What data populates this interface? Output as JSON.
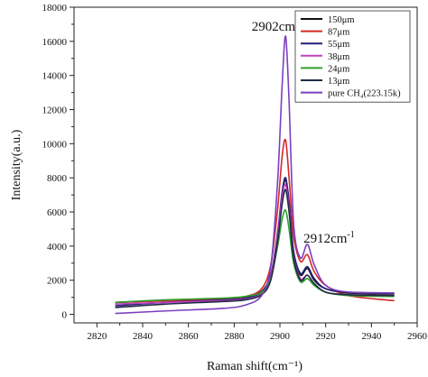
{
  "chart_data": {
    "type": "line",
    "xlabel": "Raman shift(cm⁻¹)",
    "ylabel": "Intensity(a.u.)",
    "xlim": [
      2810,
      2960
    ],
    "ylim": [
      -500,
      18000
    ],
    "x_ticks": [
      "2820",
      "2840",
      "2860",
      "2880",
      "2900",
      "2920",
      "2940",
      "2960"
    ],
    "y_ticks": [
      "0",
      "2000",
      "4000",
      "6000",
      "8000",
      "10000",
      "12000",
      "14000",
      "16000",
      "18000"
    ],
    "annotations": [
      {
        "base": "2902cm",
        "sup": "-1",
        "x": 2902,
        "y": 16200
      },
      {
        "base": "2912cm",
        "sup": "-1",
        "x": 2912,
        "y": 4100
      }
    ],
    "legend_position": "top-right",
    "series": [
      {
        "name": "150μm",
        "color": "#111111",
        "x": [
          2828,
          2850,
          2875,
          2885,
          2892,
          2896,
          2899,
          2901,
          2902.5,
          2904,
          2906,
          2909,
          2912,
          2915,
          2920,
          2930,
          2950
        ],
        "y": [
          700,
          800,
          900,
          1000,
          1350,
          2300,
          4500,
          7000,
          7900,
          6500,
          3600,
          2300,
          2700,
          2000,
          1500,
          1250,
          1200
        ]
      },
      {
        "name": "87μm",
        "color": "#d62728",
        "x": [
          2828,
          2850,
          2875,
          2885,
          2892,
          2896,
          2899,
          2901,
          2902.5,
          2904,
          2906,
          2909,
          2912,
          2915,
          2920,
          2930,
          2950
        ],
        "y": [
          700,
          800,
          900,
          1050,
          1500,
          2900,
          6200,
          9300,
          10200,
          8000,
          4600,
          3100,
          3500,
          2500,
          1700,
          1100,
          800
        ]
      },
      {
        "name": "55μm",
        "color": "#1f1f7a",
        "x": [
          2828,
          2850,
          2875,
          2885,
          2892,
          2896,
          2899,
          2901,
          2902.5,
          2904,
          2906,
          2909,
          2912,
          2915,
          2920,
          2930,
          2950
        ],
        "y": [
          500,
          700,
          850,
          950,
          1300,
          2300,
          4800,
          7200,
          8000,
          6600,
          3700,
          2400,
          2800,
          2100,
          1500,
          1300,
          1250
        ]
      },
      {
        "name": "38μm",
        "color": "#c040c0",
        "x": [
          2828,
          2850,
          2875,
          2885,
          2892,
          2896,
          2899,
          2901,
          2902.5,
          2904,
          2906,
          2909,
          2912,
          2915,
          2920,
          2930,
          2950
        ],
        "y": [
          600,
          700,
          800,
          900,
          1200,
          2200,
          4600,
          6900,
          7600,
          6200,
          3400,
          2100,
          2300,
          1800,
          1300,
          1150,
          1100
        ]
      },
      {
        "name": "24μm",
        "color": "#2ca02c",
        "x": [
          2828,
          2850,
          2875,
          2885,
          2892,
          2896,
          2899,
          2901,
          2902.5,
          2904,
          2906,
          2909,
          2912,
          2915,
          2920,
          2930,
          2950
        ],
        "y": [
          700,
          850,
          950,
          1050,
          1300,
          2100,
          4000,
          5600,
          6100,
          5000,
          3000,
          1900,
          2100,
          1700,
          1300,
          1100,
          1050
        ]
      },
      {
        "name": "13μm",
        "color": "#1f2a44",
        "x": [
          2828,
          2850,
          2875,
          2885,
          2892,
          2896,
          2899,
          2901,
          2902.5,
          2904,
          2906,
          2909,
          2912,
          2915,
          2920,
          2930,
          2950
        ],
        "y": [
          400,
          600,
          750,
          850,
          1150,
          2000,
          4300,
          6500,
          7300,
          6000,
          3300,
          2000,
          2300,
          1800,
          1300,
          1150,
          1100
        ]
      },
      {
        "name": "pure CH₄(223.15k)",
        "color": "#7b3fbf",
        "x": [
          2828,
          2850,
          2875,
          2885,
          2892,
          2896,
          2899,
          2901,
          2902.5,
          2904,
          2906,
          2909,
          2912,
          2915,
          2920,
          2930,
          2950
        ],
        "y": [
          50,
          200,
          350,
          550,
          1100,
          2800,
          7800,
          13500,
          16300,
          12500,
          5300,
          3300,
          4100,
          2900,
          1700,
          1300,
          1250
        ]
      }
    ]
  }
}
